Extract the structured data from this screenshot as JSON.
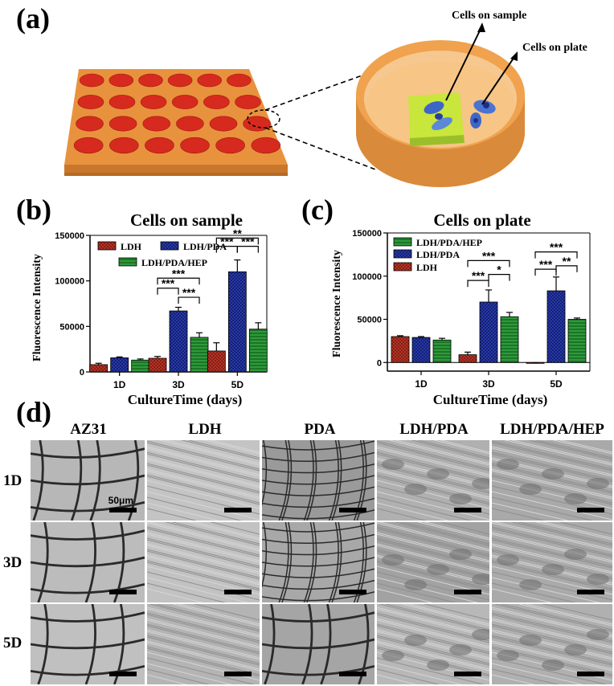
{
  "panel_a": {
    "label": "(a)",
    "note_sample": "Cells on sample",
    "note_plate": "Cells on plate"
  },
  "panel_b": {
    "label": "(b)"
  },
  "panel_c": {
    "label": "(c)"
  },
  "panel_d": {
    "label": "(d)",
    "columns": [
      "AZ31",
      "LDH",
      "PDA",
      "LDH/PDA",
      "LDH/PDA/HEP"
    ],
    "rows": [
      "1D",
      "3D",
      "5D"
    ],
    "scale_label": "50μm"
  },
  "colors": {
    "LDH": "#c0392b",
    "LDH/PDA": "#2d3fb5",
    "LDH/PDA/HEP": "#2e9a3a",
    "plate_orange": "#f0a24e",
    "well_red": "#d62a1e"
  },
  "chart_data": [
    {
      "type": "bar",
      "title": "Cells on sample",
      "xlabel": "CultureTime (days)",
      "ylabel": "Fluorescence Intensity",
      "categories": [
        "1D",
        "3D",
        "5D"
      ],
      "ylim": [
        0,
        150000
      ],
      "yticks": [
        "0",
        "50000",
        "100000",
        "150000"
      ],
      "series": [
        {
          "name": "LDH",
          "values": [
            8000,
            15000,
            23000
          ],
          "errors": [
            1500,
            2000,
            9000
          ]
        },
        {
          "name": "LDH/PDA",
          "values": [
            15500,
            67000,
            110000
          ],
          "errors": [
            1000,
            4000,
            13000
          ]
        },
        {
          "name": "LDH/PDA/HEP",
          "values": [
            13000,
            38000,
            47000
          ],
          "errors": [
            1200,
            5000,
            7000
          ]
        }
      ],
      "legend": "top-left",
      "annotations": [
        "***",
        "***",
        "***",
        "**",
        "***",
        "***"
      ]
    },
    {
      "type": "bar",
      "title": "Cells on plate",
      "xlabel": "CultureTime (days)",
      "ylabel": "Fluorescence Intensity",
      "categories": [
        "1D",
        "3D",
        "5D"
      ],
      "ylim": [
        -10000,
        150000
      ],
      "yticks": [
        "0",
        "50000",
        "100000",
        "150000"
      ],
      "series": [
        {
          "name": "LDH",
          "values": [
            30000,
            9000,
            -1000
          ],
          "errors": [
            1000,
            3000,
            500
          ]
        },
        {
          "name": "LDH/PDA",
          "values": [
            29000,
            70000,
            83000
          ],
          "errors": [
            1000,
            14000,
            16000
          ]
        },
        {
          "name": "LDH/PDA/HEP",
          "values": [
            26000,
            53000,
            50000
          ],
          "errors": [
            2000,
            5000,
            1500
          ]
        }
      ],
      "legend": "top-left",
      "annotations": [
        "***",
        "***",
        "*",
        "***",
        "***",
        "**"
      ]
    }
  ]
}
